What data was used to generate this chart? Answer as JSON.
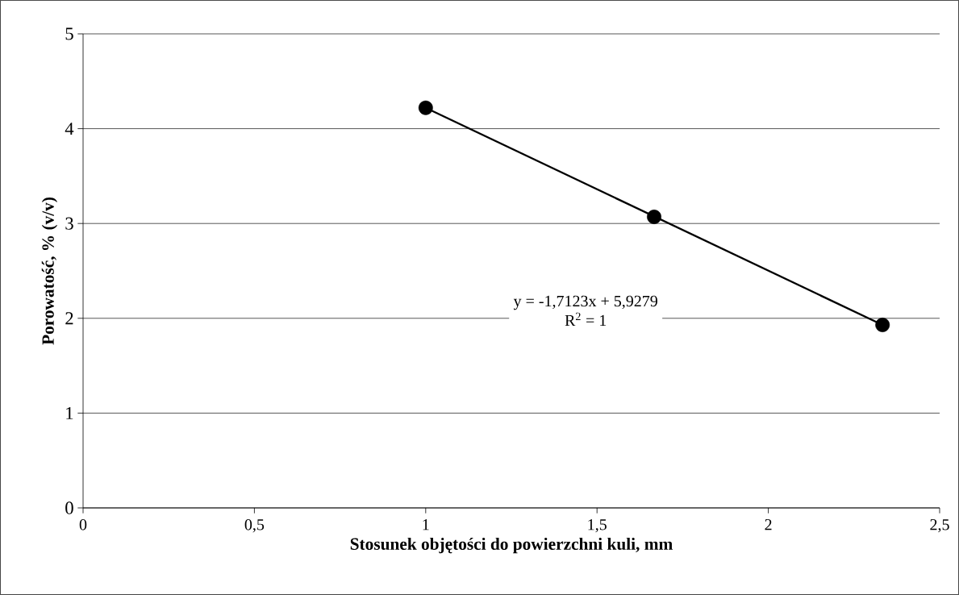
{
  "chart_data": {
    "type": "scatter",
    "xlabel": "Stosunek objętości do powierzchni kuli, mm",
    "ylabel": "Porowatość, % (v/v)",
    "xlim": [
      0,
      2.5
    ],
    "ylim": [
      0,
      5
    ],
    "xticks": [
      0,
      {
        "value": 0.5,
        "label": "0,5"
      },
      1,
      {
        "value": 1.5,
        "label": "1,5"
      },
      2,
      {
        "value": 2.5,
        "label": "2,5"
      }
    ],
    "yticks": [
      0,
      1,
      2,
      3,
      4,
      5
    ],
    "grid": "y",
    "line_style": "solid",
    "series": [
      {
        "color": "#000000",
        "marker": "circle",
        "x": [
          1,
          1.6667,
          2.3333
        ],
        "values": [
          4.22,
          3.07,
          1.93
        ]
      },
      {
        "type": "line",
        "color": "#000000",
        "marker": "none",
        "x": [
          1,
          2.3333
        ],
        "values": [
          4.22,
          1.93
        ]
      }
    ],
    "annotations": [
      "y = -1,7123x + 5,9279",
      "R$^{2}$ = 1"
    ]
  }
}
